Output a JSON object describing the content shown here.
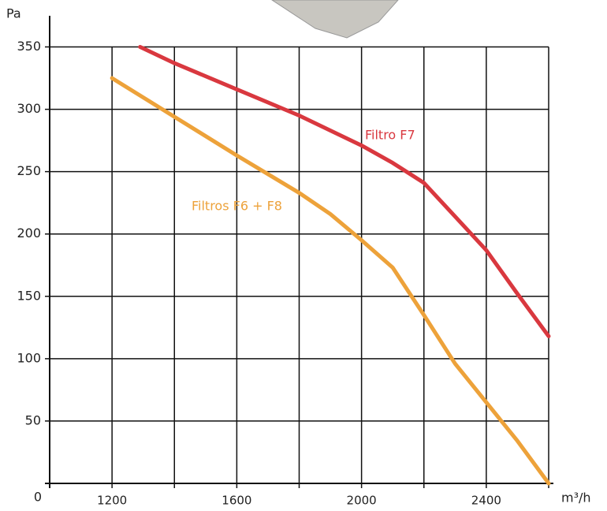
{
  "chart_data": {
    "type": "line",
    "x_label": "m³/h",
    "y_label": "Pa",
    "xlim": [
      1000,
      2600
    ],
    "ylim": [
      0,
      375
    ],
    "xticks": [
      1200,
      1600,
      2000,
      2400
    ],
    "xminor": [
      1400,
      1800,
      2200,
      2600
    ],
    "yticks": [
      0,
      50,
      100,
      150,
      200,
      250,
      300,
      350
    ],
    "grid": true,
    "series": [
      {
        "name": "Filtro F7",
        "color": "#d9383f",
        "x": [
          1290,
          1400,
          1600,
          1800,
          2000,
          2100,
          2200,
          2300,
          2400,
          2500,
          2600
        ],
        "values": [
          350,
          337,
          316,
          295,
          271,
          257,
          241,
          214,
          187,
          152,
          118
        ]
      },
      {
        "name": "Filtros F6 + F8",
        "color": "#eda23a",
        "x": [
          1200,
          1400,
          1600,
          1800,
          1900,
          2000,
          2100,
          2200,
          2300,
          2400,
          2500,
          2600
        ],
        "values": [
          325,
          294,
          263,
          233,
          216,
          195,
          173,
          135,
          96,
          65,
          34,
          0
        ]
      }
    ]
  }
}
